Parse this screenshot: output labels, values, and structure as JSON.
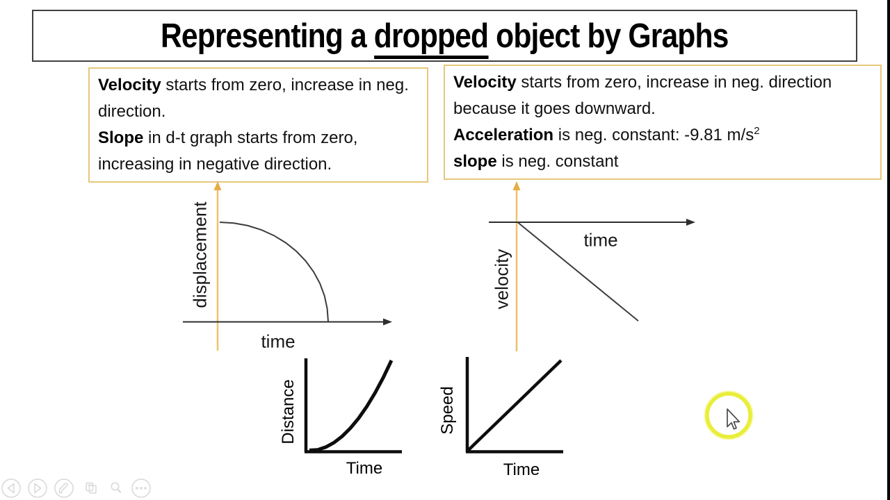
{
  "slide": {
    "kind": "physics lesson slide shown in a presentation player",
    "title": {
      "pre": "Representing a ",
      "underlined": "dropped",
      "post": " object by Graphs"
    }
  },
  "notes_left": {
    "items": [
      {
        "lead": "Velocity",
        "text": " starts from zero, increase in neg. direction."
      },
      {
        "lead": "Slope",
        "text": " in d-t graph starts from zero, increasing in negative direction."
      }
    ]
  },
  "notes_right": {
    "items": [
      {
        "lead": "Velocity",
        "text": " starts from zero, increase in neg. direction because it goes downward."
      },
      {
        "lead": "Acceleration",
        "text": " is neg. constant: -9.81 m/s",
        "sup": "2"
      },
      {
        "lead": "slope",
        "text": " is neg. constant"
      }
    ]
  },
  "chart_data": [
    {
      "id": "displacement-vs-time",
      "type": "line",
      "title": "",
      "xlabel": "time",
      "ylabel": "displacement",
      "x_range": [
        0,
        1
      ],
      "y_range": [
        0,
        1
      ],
      "grid": false,
      "legend": "none",
      "description": "Sketch: displacement of a dropped object. Curve starts on the vertical axis with zero slope and bends increasingly steeply (quarter-circle shape) until it meets the time axis vertically — magnitude grows in the negative direction.",
      "points": [
        [
          0,
          1
        ],
        [
          0.13,
          0.991
        ],
        [
          0.259,
          0.966
        ],
        [
          0.383,
          0.924
        ],
        [
          0.5,
          0.866
        ],
        [
          0.609,
          0.793
        ],
        [
          0.707,
          0.707
        ],
        [
          0.793,
          0.609
        ],
        [
          0.866,
          0.5
        ],
        [
          0.924,
          0.383
        ],
        [
          0.966,
          0.259
        ],
        [
          0.991,
          0.13
        ],
        [
          1,
          0
        ]
      ]
    },
    {
      "id": "velocity-vs-time",
      "type": "line",
      "title": "",
      "xlabel": "time",
      "ylabel": "velocity",
      "x_range": [
        0,
        1
      ],
      "y_range": [
        -1,
        0
      ],
      "grid": false,
      "legend": "none",
      "description": "Sketch: velocity starts at zero and increases linearly in the negative direction — straight line of constant negative slope below the time axis.",
      "points": [
        [
          0,
          0
        ],
        [
          1,
          -0.99
        ]
      ]
    },
    {
      "id": "distance-vs-time",
      "type": "line",
      "title": "",
      "xlabel": "Time",
      "ylabel": "Distance",
      "x_range": [
        0,
        1
      ],
      "y_range": [
        0,
        1
      ],
      "grid": false,
      "legend": "none",
      "description": "Sketch: distance fallen grows quadratically with time (d proportional to t squared).",
      "points": [
        [
          0,
          0.005
        ],
        [
          0.1,
          0.01
        ],
        [
          0.2,
          0.04
        ],
        [
          0.3,
          0.09
        ],
        [
          0.4,
          0.16
        ],
        [
          0.5,
          0.25
        ],
        [
          0.6,
          0.36
        ],
        [
          0.7,
          0.49
        ],
        [
          0.8,
          0.64
        ],
        [
          0.9,
          0.81
        ],
        [
          1,
          1
        ]
      ]
    },
    {
      "id": "speed-vs-time",
      "type": "line",
      "title": "",
      "xlabel": "Time",
      "ylabel": "Speed",
      "x_range": [
        0,
        1
      ],
      "y_range": [
        0,
        1
      ],
      "grid": false,
      "legend": "none",
      "description": "Sketch: speed increases linearly with time (constant acceleration).",
      "points": [
        [
          0,
          0.01
        ],
        [
          1,
          1
        ]
      ]
    }
  ],
  "player_controls": {
    "items": [
      {
        "name": "previous"
      },
      {
        "name": "next"
      },
      {
        "name": "annotate-pen"
      },
      {
        "name": "slides"
      },
      {
        "name": "zoom"
      },
      {
        "name": "more"
      }
    ]
  },
  "cursor": {
    "type": "arrow-pointer-with-yellow-highlight-ring",
    "highlight_color": "#e8ee3a"
  },
  "colors": {
    "axis_gold": "#ecc36a",
    "arrow_gold": "#e2ae45",
    "note_border_gold": "#e5c87c",
    "title_border": "#3f3f3f",
    "ink": "#1a1a1a",
    "control_gray": "#d8d8d8"
  }
}
